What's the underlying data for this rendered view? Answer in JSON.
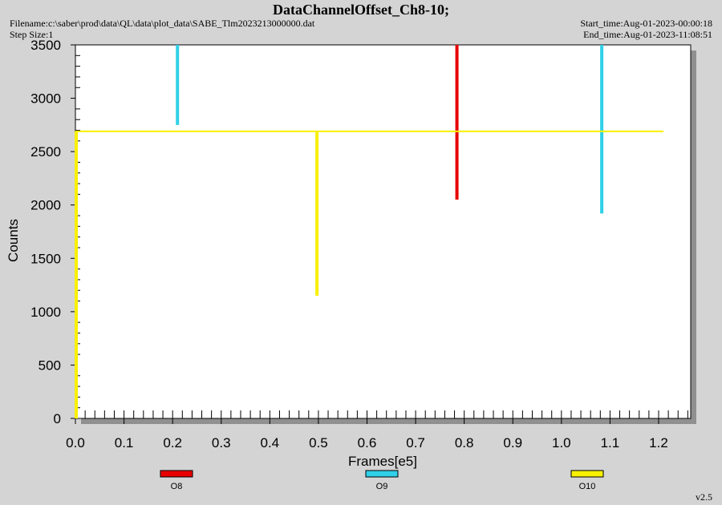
{
  "header": {
    "title": "DataChannelOffset_Ch8-10;",
    "filename": "Filename:c:\\saber\\prod\\data\\QL\\data\\plot_data\\SABE_Tlm2023213000000.dat",
    "step_size": "Step Size:1",
    "start_time": "Start_time:Aug-01-2023-00:00:18",
    "end_time": "End_time:Aug-01-2023-11:08:51"
  },
  "footer": {
    "version": "v2.5"
  },
  "colors": {
    "O8": "#e80000",
    "O9": "#30d0e8",
    "O10": "#f8f000",
    "plot_bg": "#ffffff",
    "page_bg": "#d4d4d4",
    "shadow": "#909090"
  },
  "chart_data": {
    "type": "line",
    "title": "DataChannelOffset_Ch8-10;",
    "xlabel": "Frames[e5]",
    "ylabel": "Counts",
    "xlim": [
      0.0,
      1.27
    ],
    "ylim": [
      0,
      3500
    ],
    "xticks": [
      "0.0",
      "0.1",
      "0.2",
      "0.3",
      "0.4",
      "0.5",
      "0.6",
      "0.7",
      "0.8",
      "0.9",
      "1.0",
      "1.1",
      "1.2"
    ],
    "xtick_values": [
      0.0,
      0.1,
      0.2,
      0.3,
      0.4,
      0.5,
      0.6,
      0.7,
      0.8,
      0.9,
      1.0,
      1.1,
      1.2
    ],
    "yticks": [
      "0",
      "500",
      "1000",
      "1500",
      "2000",
      "2500",
      "3000",
      "3500"
    ],
    "ytick_values": [
      0,
      500,
      1000,
      1500,
      2000,
      2500,
      3000,
      3500
    ],
    "grid": false,
    "legend_position": "bottom",
    "series": [
      {
        "name": "O8",
        "color": "#e80000",
        "segments": [
          {
            "x": 0.785,
            "y_from": 3500,
            "y_to": 2050
          }
        ]
      },
      {
        "name": "O9",
        "color": "#30d0e8",
        "segments": [
          {
            "x": 0.21,
            "y_from": 3500,
            "y_to": 2750
          },
          {
            "x": 1.083,
            "y_from": 3500,
            "y_to": 1920
          }
        ]
      },
      {
        "name": "O10",
        "color": "#f8f000",
        "baseline": {
          "x_from": 0.0,
          "x_to": 1.21,
          "y": 2690
        },
        "segments": [
          {
            "x": 0.497,
            "y_from": 2690,
            "y_to": 1150
          },
          {
            "x": 0.0,
            "y_from": 2690,
            "y_to": 0
          }
        ]
      }
    ]
  }
}
